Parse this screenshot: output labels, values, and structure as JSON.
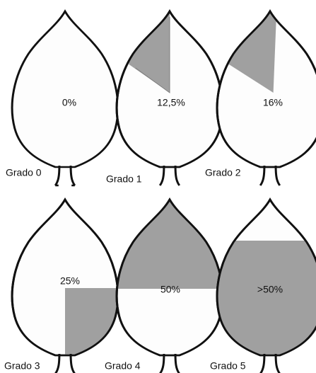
{
  "leaves": [
    {
      "grade": "Grado 0",
      "percent": "0%"
    },
    {
      "grade": "Grado 1",
      "percent": "12,5%"
    },
    {
      "grade": "Grado 2",
      "percent": "16%"
    },
    {
      "grade": "Grado 3",
      "percent": "25%"
    },
    {
      "grade": "Grado 4",
      "percent": "50%"
    },
    {
      "grade": "Grado 5",
      "percent": ">50%"
    }
  ]
}
